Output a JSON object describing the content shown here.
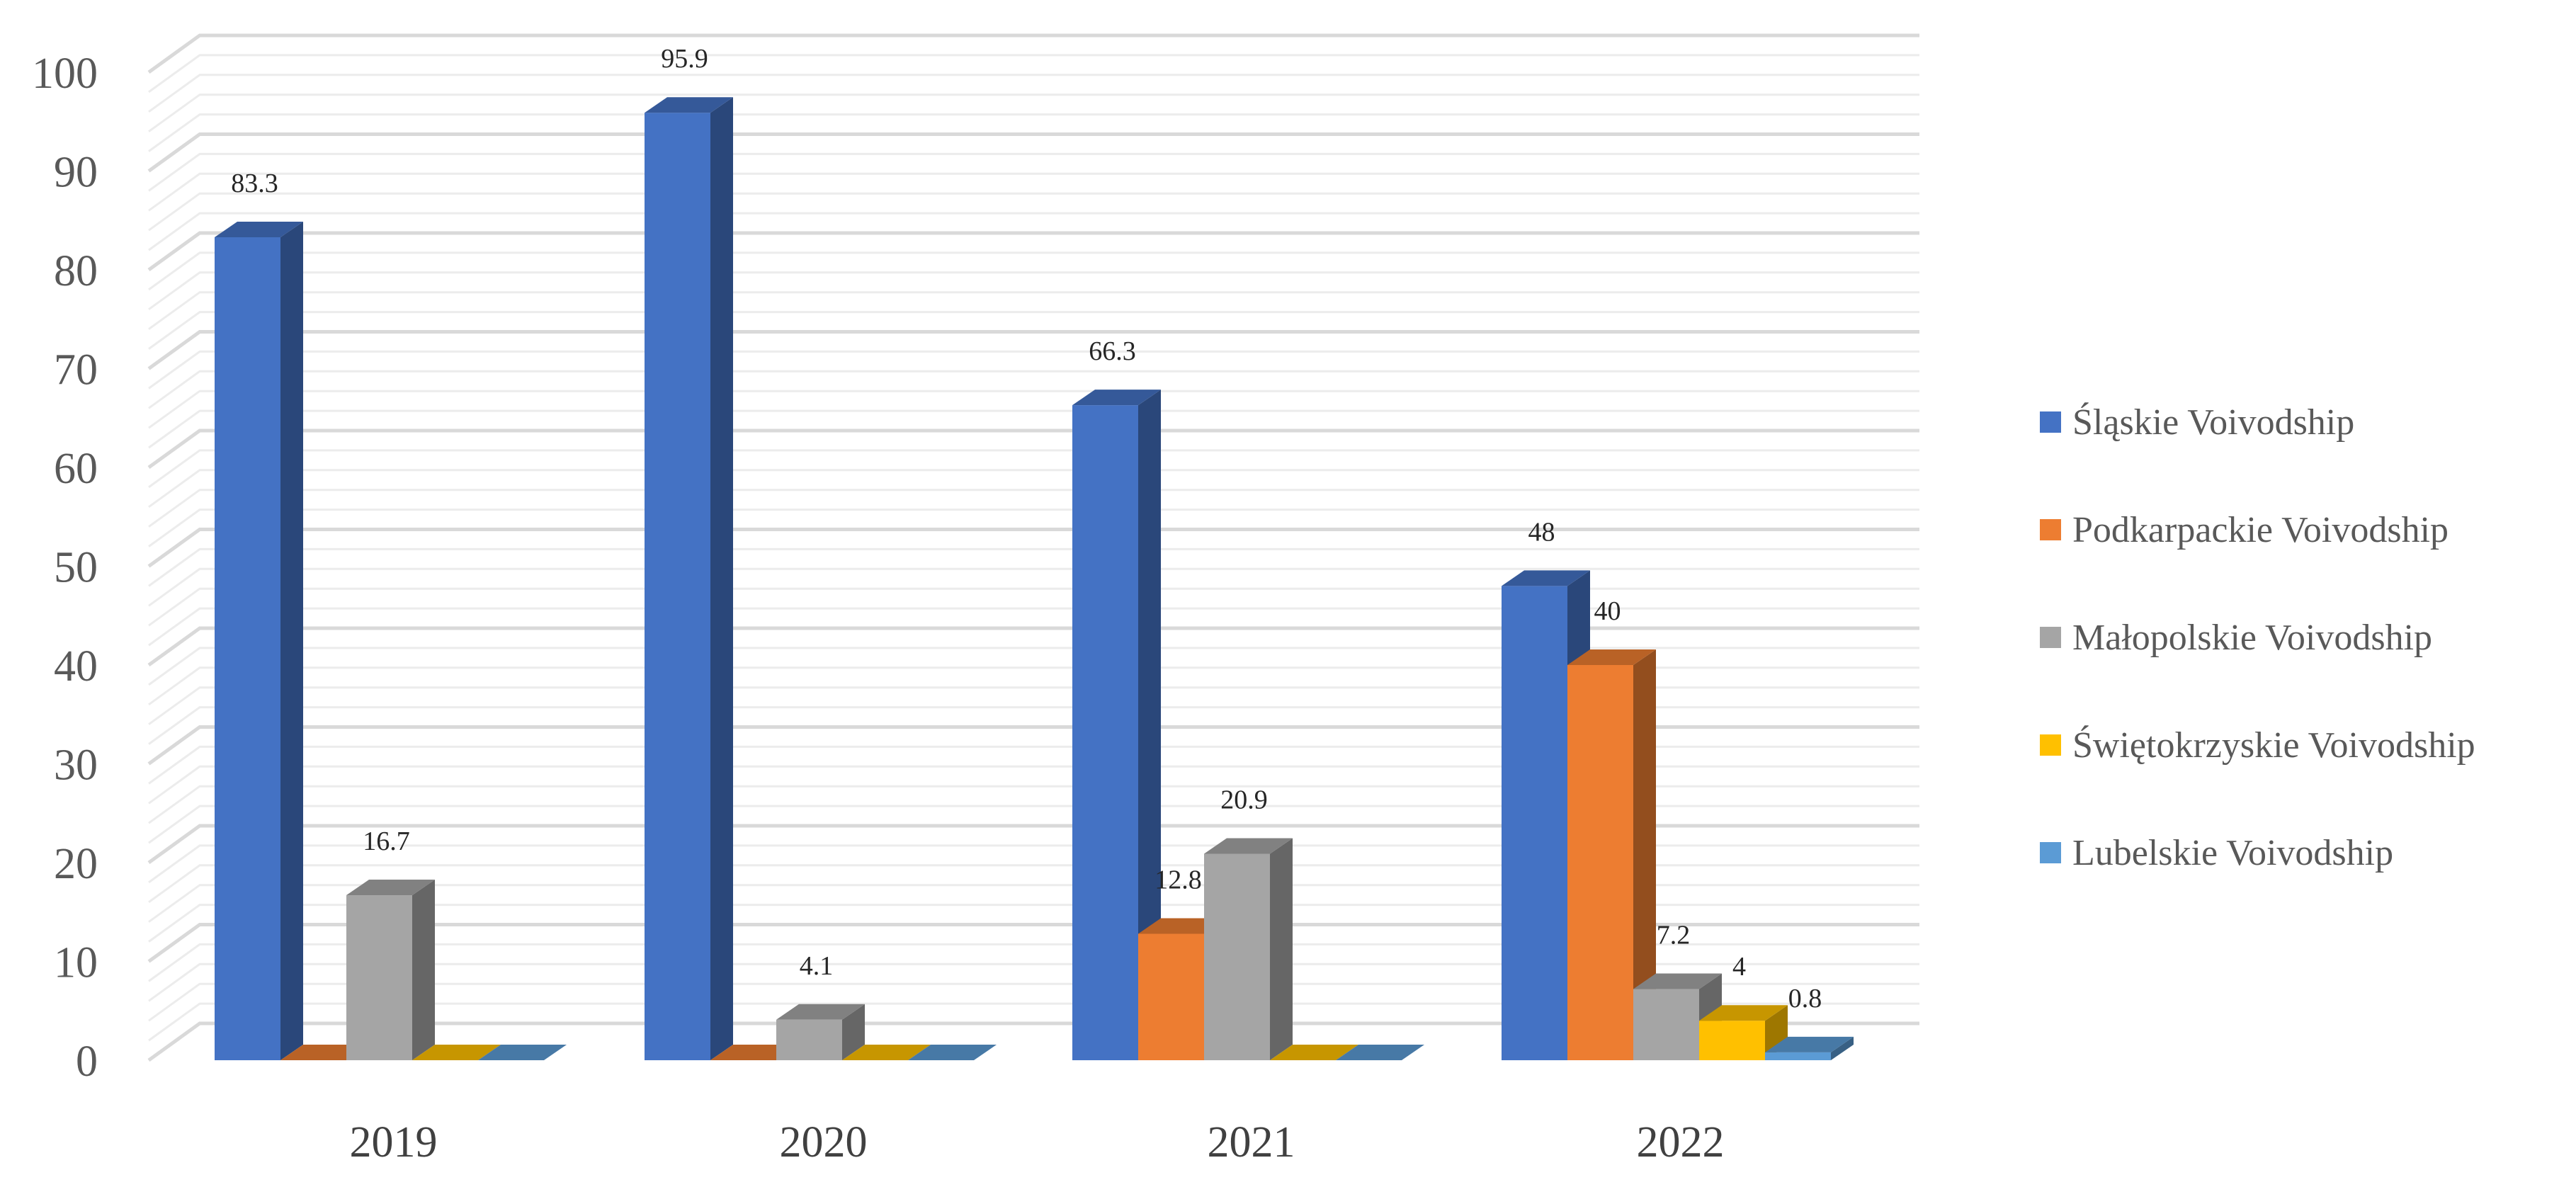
{
  "chart_data": {
    "type": "bar",
    "categories": [
      "2019",
      "2020",
      "2021",
      "2022"
    ],
    "series": [
      {
        "name": "Śląskie Voivodship",
        "color": "#4472C4",
        "values": [
          83.3,
          95.9,
          66.3,
          48
        ]
      },
      {
        "name": "Podkarpackie Voivodship",
        "color": "#ED7D31",
        "values": [
          0,
          0,
          12.8,
          40
        ]
      },
      {
        "name": "Małopolskie Voivodship",
        "color": "#A5A5A5",
        "values": [
          16.7,
          4.1,
          20.9,
          7.2
        ]
      },
      {
        "name": "Świętokrzyskie Voivodship",
        "color": "#FFC000",
        "values": [
          0,
          0,
          0,
          4
        ]
      },
      {
        "name": "Lubelskie Voivodship",
        "color": "#5B9BD5",
        "values": [
          0,
          0,
          0,
          0.8
        ]
      }
    ],
    "data_labels": [
      [
        "83.3",
        "95.9",
        "66.3",
        "48"
      ],
      [
        "",
        "",
        "12.8",
        "40"
      ],
      [
        "16.7",
        "4.1",
        "20.9",
        "7.2"
      ],
      [
        "",
        "",
        "",
        "4"
      ],
      [
        "",
        "",
        "",
        "0.8"
      ]
    ],
    "y_ticks": [
      "0",
      "10",
      "20",
      "30",
      "40",
      "50",
      "60",
      "70",
      "80",
      "90",
      "100"
    ],
    "ylim": [
      0,
      100
    ],
    "grid": true,
    "legend_position": "right",
    "style": "3d-clustered-column"
  }
}
